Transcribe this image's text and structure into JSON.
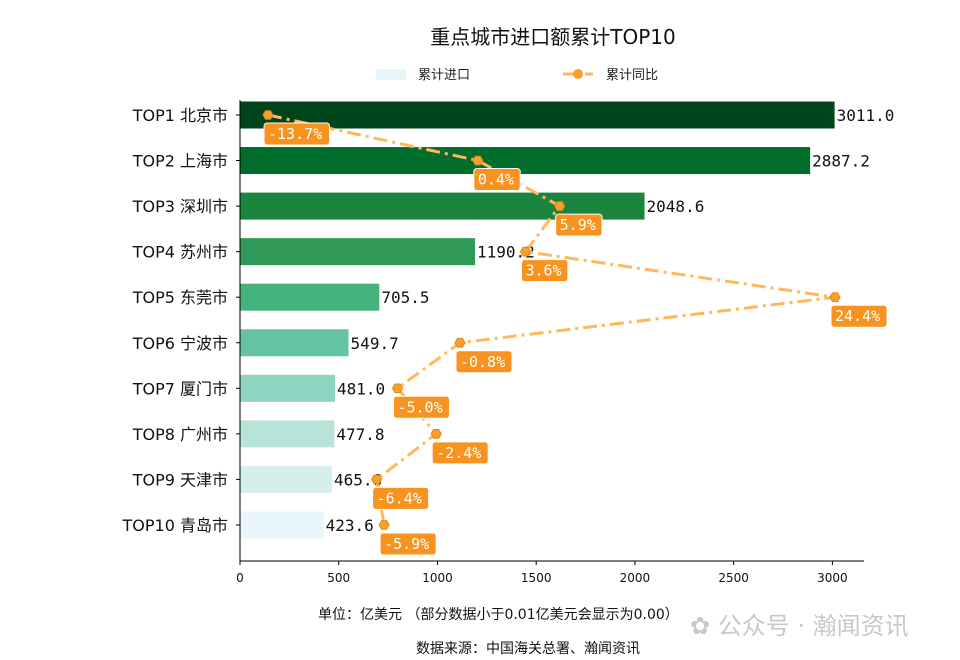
{
  "chart_data": {
    "type": "bar",
    "orientation": "horizontal",
    "title": "重点城市进口额累计TOP10",
    "categories": [
      "TOP1 北京市",
      "TOP2 上海市",
      "TOP3 深圳市",
      "TOP4 苏州市",
      "TOP5 东莞市",
      "TOP6 宁波市",
      "TOP7 厦门市",
      "TOP8 广州市",
      "TOP9 天津市",
      "TOP10 青岛市"
    ],
    "series": [
      {
        "name": "累计进口",
        "type": "bar",
        "values": [
          3011.0,
          2887.2,
          2048.6,
          1190.2,
          705.5,
          549.7,
          481.0,
          477.8,
          465.6,
          423.6
        ],
        "value_labels": [
          "3011.0",
          "2887.2",
          "2048.6",
          "1190.2",
          "705.5",
          "549.7",
          "481.0",
          "477.8",
          "465.6",
          "423.6"
        ],
        "colors": [
          "#00441b",
          "#006d2c",
          "#1b843f",
          "#2f9a58",
          "#46b37d",
          "#66c2a4",
          "#8fd4c1",
          "#b7e3d9",
          "#d4efec",
          "#e8f5fa"
        ]
      },
      {
        "name": "累计同比",
        "type": "line",
        "unit": "%",
        "values": [
          -13.7,
          0.4,
          5.9,
          3.6,
          24.4,
          -0.8,
          -5.0,
          -2.4,
          -6.4,
          -5.9
        ],
        "value_labels": [
          "-13.7%",
          "0.4%",
          "5.9%",
          "3.6%",
          "24.4%",
          "-0.8%",
          "-5.0%",
          "-2.4%",
          "-6.4%",
          "-5.9%"
        ],
        "color": "#ffb95a",
        "label_color": "#f7931e",
        "style": "dash-dot",
        "marker": "hexagon",
        "axis": "secondary-hidden"
      }
    ],
    "xlim": [
      0,
      3160
    ],
    "xticks": [
      0,
      500,
      1000,
      1500,
      2000,
      2500,
      3000
    ],
    "xtick_labels": [
      "0",
      "500",
      "1000",
      "1500",
      "2000",
      "2500",
      "3000"
    ],
    "xlabel": "单位：亿美元  （部分数据小于0.01亿美元会显示为0.00）",
    "source": "数据来源：中国海关总署、瀚闻资讯",
    "legend_position": "top-center",
    "grid": false
  },
  "watermark": "公众号 · 瀚闻资讯"
}
